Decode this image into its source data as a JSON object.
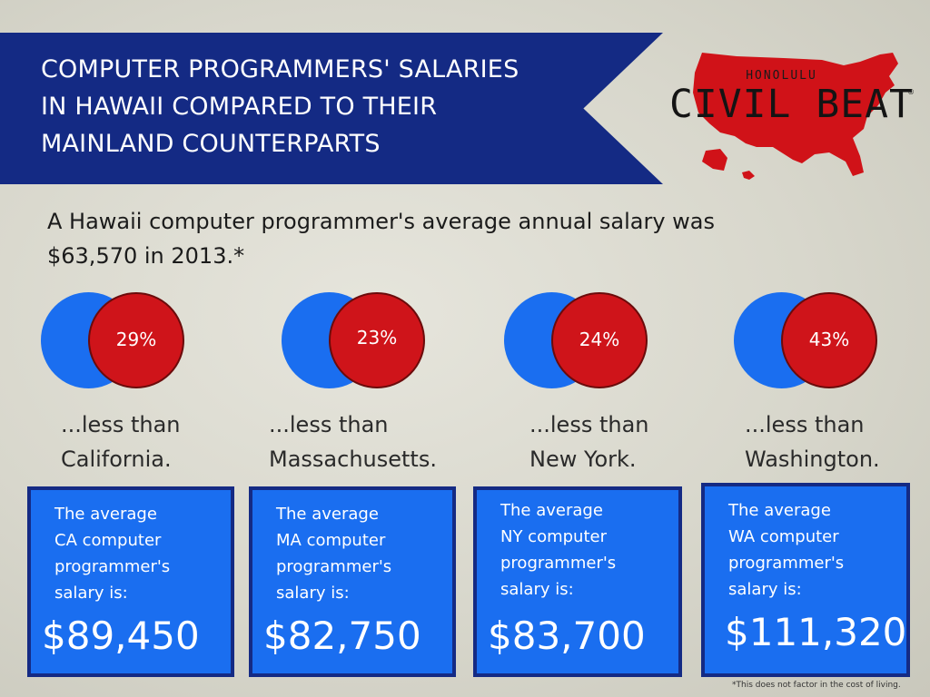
{
  "header": {
    "title_line1": "COMPUTER PROGRAMMERS' SALARIES",
    "title_line2": "IN HAWAII COMPARED TO THEIR",
    "title_line3": "MAINLAND COUNTERPARTS"
  },
  "logo": {
    "top_text": "HONOLULU",
    "main_text": "CIVIL BEAT",
    "reg_mark": "®"
  },
  "intro": {
    "line1": "A Hawaii computer programmer's average annual salary was",
    "line2": "$63,570 in 2013.*"
  },
  "comparisons": [
    {
      "percent": "29%",
      "less_line1": "...less than",
      "less_line2": "California.",
      "box_line1": "The average",
      "box_line2": "CA computer",
      "box_line3": "programmer's",
      "box_line4": "salary is:",
      "salary": "$89,450"
    },
    {
      "percent": "23%",
      "less_line1": "...less than",
      "less_line2": "Massachusetts.",
      "box_line1": "The average",
      "box_line2": "MA computer",
      "box_line3": "programmer's",
      "box_line4": "salary is:",
      "salary": "$82,750"
    },
    {
      "percent": "24%",
      "less_line1": "...less than",
      "less_line2": "New York.",
      "box_line1": "The average",
      "box_line2": "NY computer",
      "box_line3": "programmer's",
      "box_line4": "salary is:",
      "salary": "$83,700"
    },
    {
      "percent": "43%",
      "less_line1": "...less than",
      "less_line2": "Washington.",
      "box_line1": "The average",
      "box_line2": "WA computer",
      "box_line3": "programmer's",
      "box_line4": "salary is:",
      "salary": "$111,320"
    }
  ],
  "footnote": "*This does not factor in the cost of living.",
  "colors": {
    "navy": "#142a84",
    "blue": "#1a6ef0",
    "red": "#cf141a",
    "background": "#d8d7cc"
  },
  "icons": {
    "logo_map": "usa-map-icon"
  }
}
